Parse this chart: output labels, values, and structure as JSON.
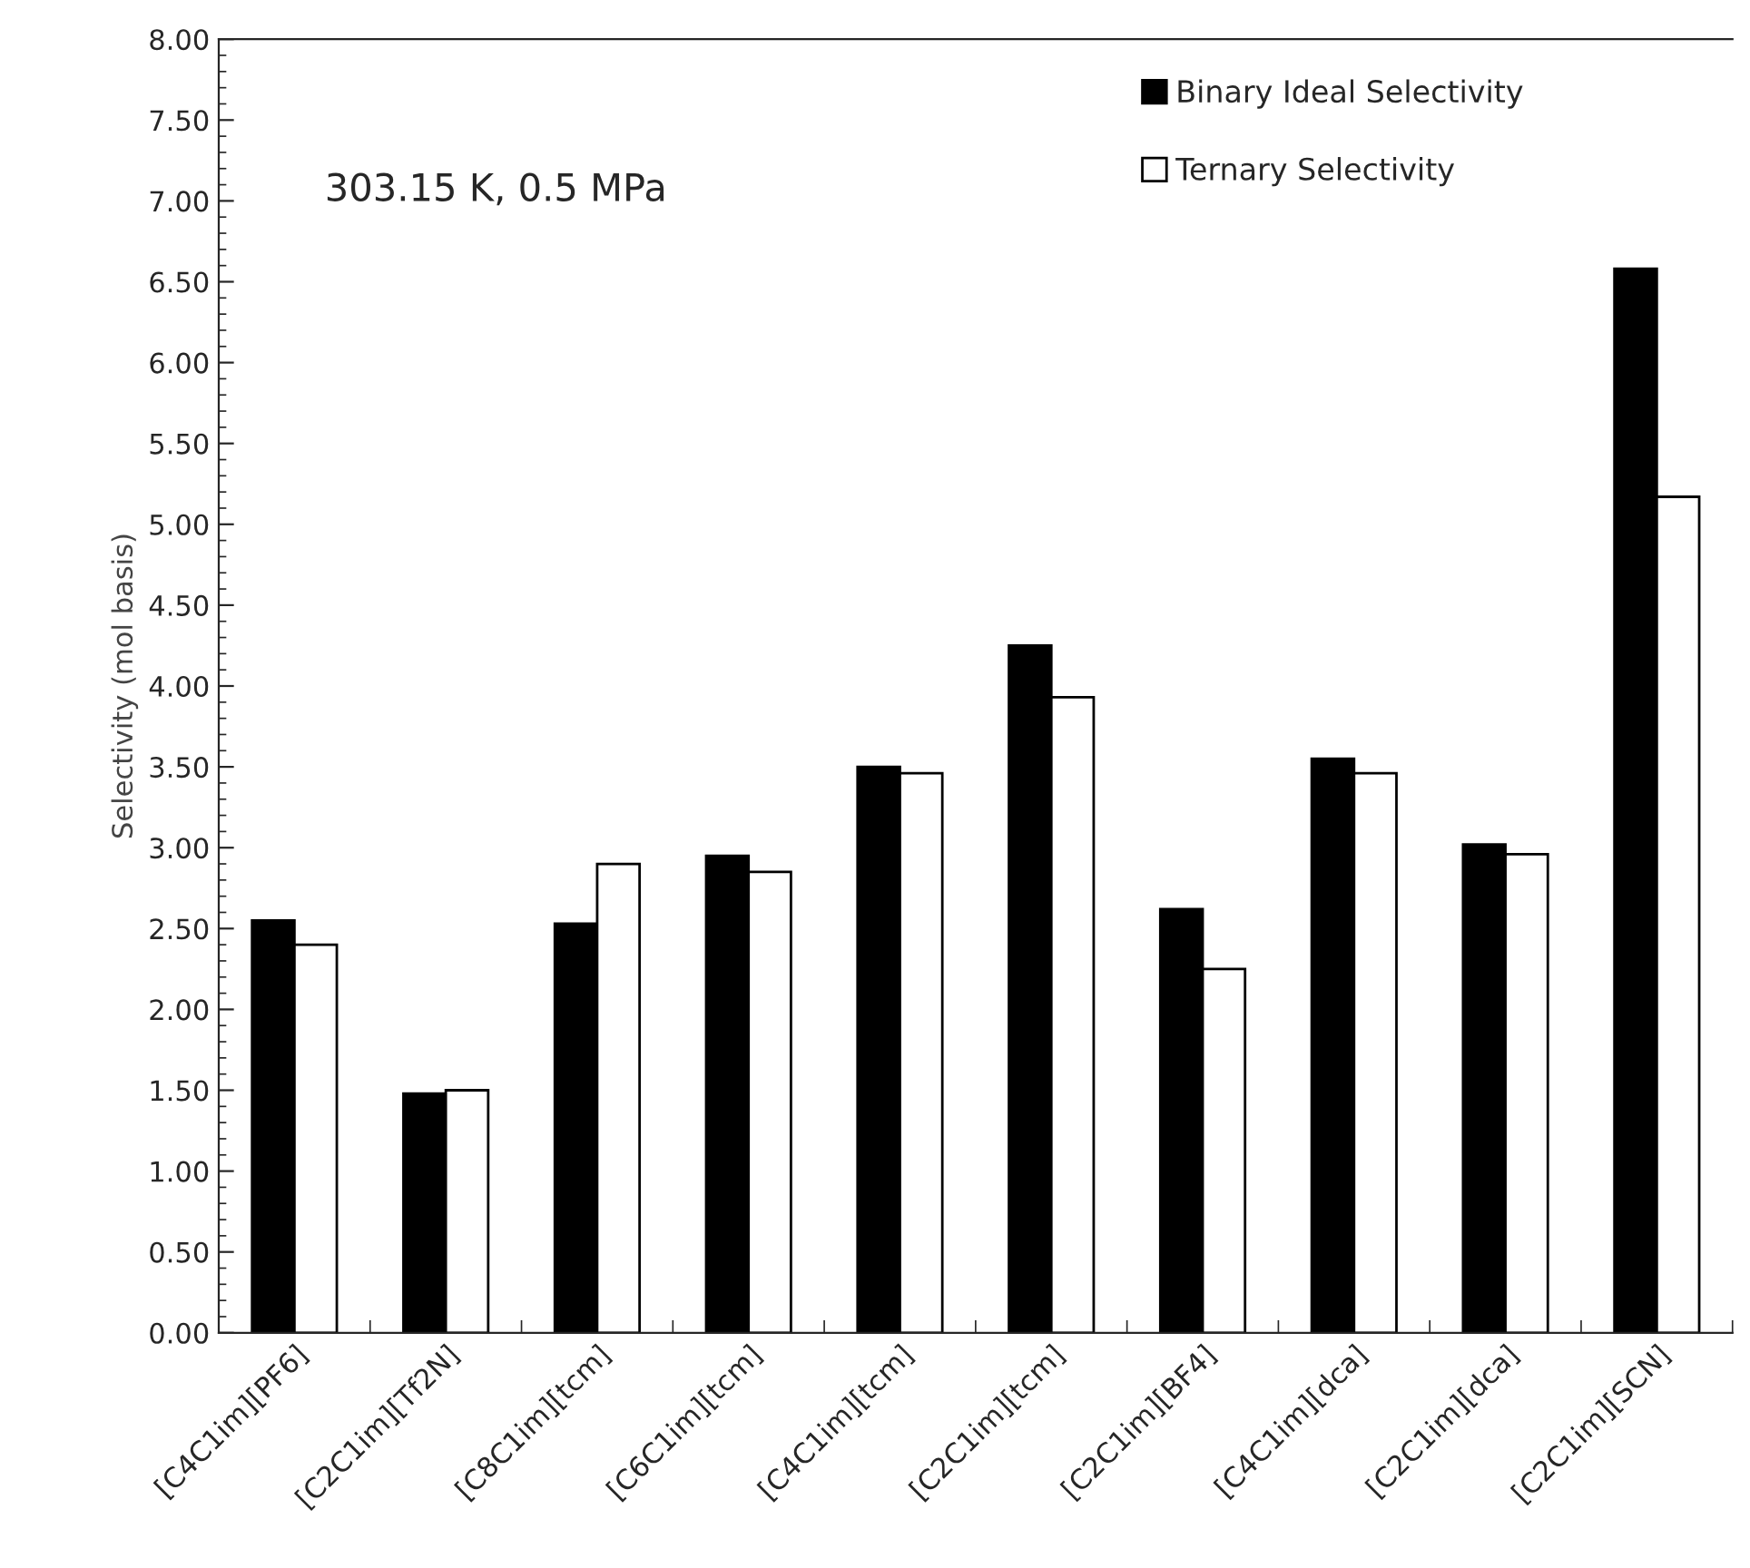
{
  "chart_data": {
    "type": "bar",
    "ylabel": "Selectivity (mol basis)",
    "categories": [
      "[C4C1im][PF6]",
      "[C2C1im][Tf2N]",
      "[C8C1im][tcm]",
      "[C6C1im][tcm]",
      "[C4C1im][tcm]",
      "[C2C1im][tcm]",
      "[C2C1im][BF4]",
      "[C4C1im][dca]",
      "[C2C1im][dca]",
      "[C2C1im][SCN]"
    ],
    "series": [
      {
        "name": "Binary Ideal Selectivity",
        "color": "#000000",
        "values": [
          2.55,
          1.48,
          2.53,
          2.95,
          3.5,
          4.25,
          2.62,
          3.55,
          3.02,
          6.58
        ]
      },
      {
        "name": "Ternary Selectivity",
        "color": "#ffffff",
        "values": [
          2.4,
          1.5,
          2.9,
          2.85,
          3.46,
          3.93,
          2.25,
          3.46,
          2.96,
          5.17
        ]
      }
    ],
    "ylim": [
      0,
      8
    ],
    "yticks": [
      {
        "value": 0,
        "label": "0.00"
      },
      {
        "value": 0.5,
        "label": "0.50"
      },
      {
        "value": 1,
        "label": "1.00"
      },
      {
        "value": 1.5,
        "label": "1.50"
      },
      {
        "value": 2,
        "label": "2.00"
      },
      {
        "value": 2.5,
        "label": "2.50"
      },
      {
        "value": 3,
        "label": "3.00"
      },
      {
        "value": 3.5,
        "label": "3.50"
      },
      {
        "value": 4,
        "label": "4.00"
      },
      {
        "value": 4.5,
        "label": "4.50"
      },
      {
        "value": 5,
        "label": "5.00"
      },
      {
        "value": 5.5,
        "label": "5.50"
      },
      {
        "value": 6,
        "label": "6.00"
      },
      {
        "value": 6.5,
        "label": "6.50"
      },
      {
        "value": 7,
        "label": "7.00"
      },
      {
        "value": 7.5,
        "label": "7.50"
      },
      {
        "value": 8,
        "label": "8.00"
      }
    ],
    "annotations": [
      "303.15 K, 0.5 MPa"
    ],
    "legend": "top right",
    "grid": false
  }
}
